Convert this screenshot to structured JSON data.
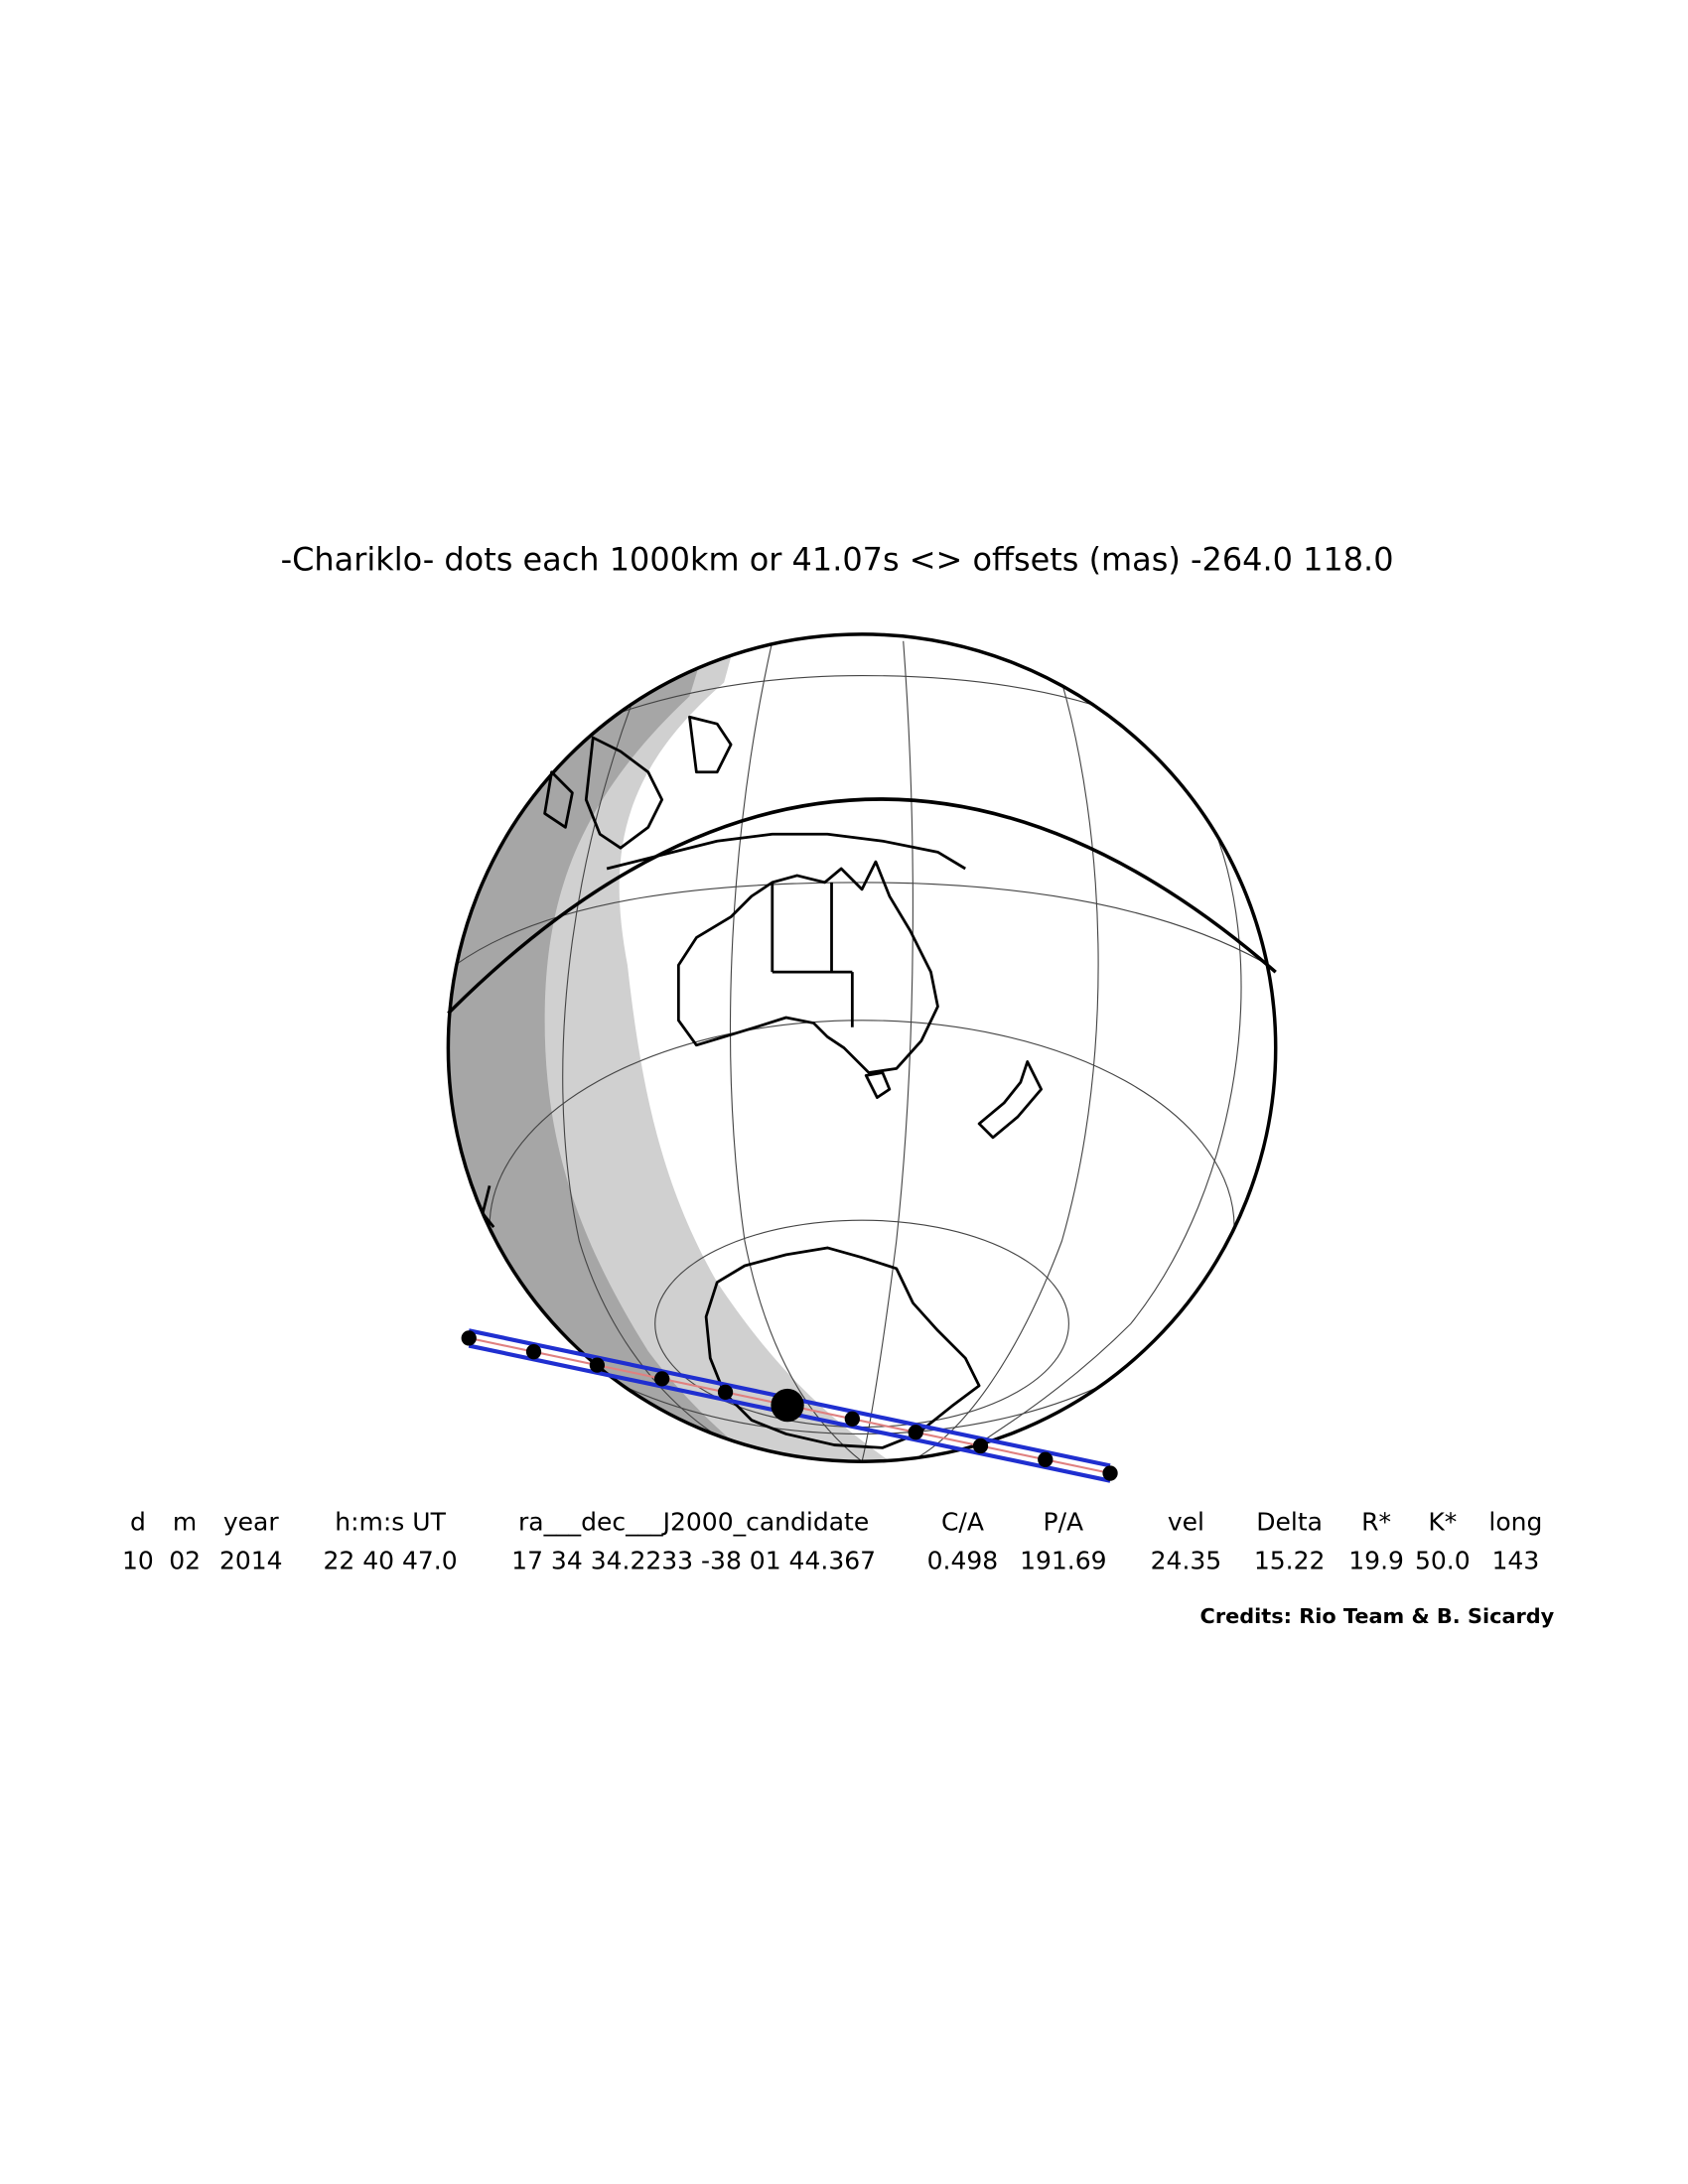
{
  "title": "-Chariklo- dots each 1000km or 41.07s <> offsets (mas) -264.0  118.0",
  "table": {
    "header": [
      "d",
      "m",
      "year",
      "h:m:s UT",
      "ra___dec___J2000_candidate",
      "C/A",
      "P/A",
      "vel",
      "Delta",
      "R*",
      "K*",
      "long"
    ],
    "values": [
      "10",
      "02",
      "2014",
      "22 40 47.0",
      "17 34 34.2233 -38 01 44.367",
      "0.498",
      "191.69",
      "24.35",
      "15.22",
      "19.9",
      "50.0",
      "143"
    ]
  },
  "credits": "Credits: Rio Team & B. Sicardy"
}
